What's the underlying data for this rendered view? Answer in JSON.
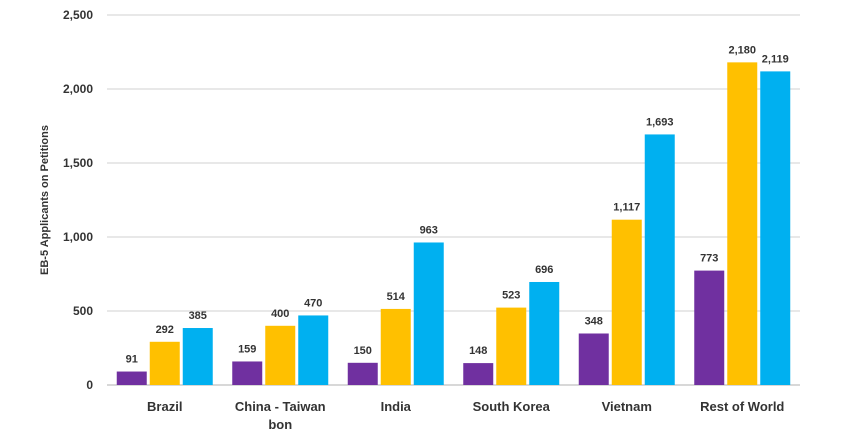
{
  "chart_data": {
    "type": "bar",
    "title": "",
    "xlabel": "",
    "ylabel": "EB-5 Applicants on Petitions",
    "ylim": [
      0,
      2500
    ],
    "yticks": [
      0,
      500,
      1000,
      1500,
      2000,
      2500
    ],
    "ytick_labels": [
      "0",
      "500",
      "1,000",
      "1,500",
      "2,000",
      "2,500"
    ],
    "grid": true,
    "legend": "none",
    "categories": [
      [
        "Brazil"
      ],
      [
        "China - Taiwan",
        "bon"
      ],
      [
        "India"
      ],
      [
        "South Korea"
      ],
      [
        "Vietnam"
      ],
      [
        "Rest of World"
      ]
    ],
    "series": [
      {
        "color": "#7030a0",
        "values": [
          91,
          159,
          150,
          148,
          348,
          773
        ],
        "labels": [
          "91",
          "159",
          "150",
          "148",
          "348",
          "773"
        ]
      },
      {
        "color": "#ffc000",
        "values": [
          292,
          400,
          514,
          523,
          1117,
          2180
        ],
        "labels": [
          "292",
          "400",
          "514",
          "523",
          "1,117",
          "2,180"
        ]
      },
      {
        "color": "#00b0f0",
        "values": [
          385,
          470,
          963,
          696,
          1693,
          2119
        ],
        "labels": [
          "385",
          "470",
          "963",
          "696",
          "1,693",
          "2,119"
        ]
      }
    ]
  }
}
